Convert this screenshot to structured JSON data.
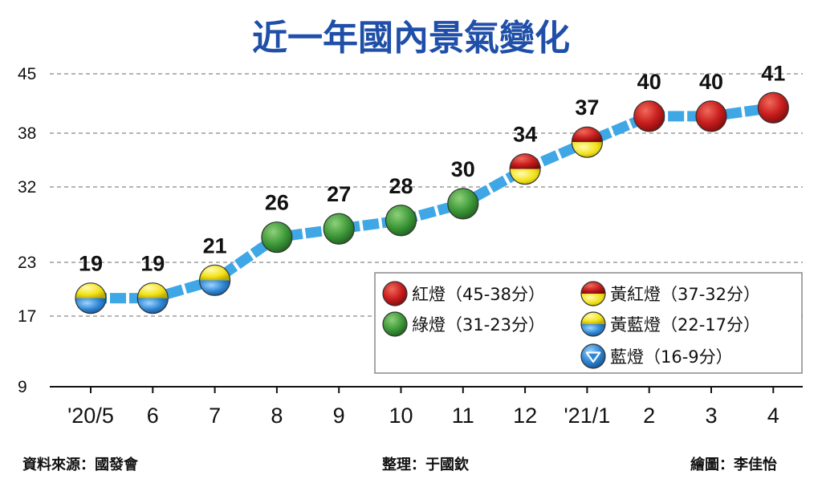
{
  "chart_data": {
    "type": "line",
    "title": "近一年國內景氣變化",
    "categories": [
      "'20/5",
      "6",
      "7",
      "8",
      "9",
      "10",
      "11",
      "12",
      "'21/1",
      "2",
      "3",
      "4"
    ],
    "values": [
      19,
      19,
      21,
      26,
      27,
      28,
      30,
      34,
      37,
      40,
      40,
      41
    ],
    "light_types": [
      "yellow-blue",
      "yellow-blue",
      "yellow-blue",
      "green",
      "green",
      "green",
      "green",
      "yellow-red",
      "yellow-red",
      "red",
      "red",
      "red"
    ],
    "y_ticks": [
      9,
      17,
      23,
      32,
      38,
      45
    ],
    "ylim": [
      9,
      45
    ],
    "grid": "horizontal-dashed",
    "line_color": "#3fa7e6",
    "legend": {
      "placement": "bottom-right",
      "items": [
        {
          "type": "red",
          "label": "紅燈（45-38分）"
        },
        {
          "type": "yellow-red",
          "label": "黃紅燈（37-32分）"
        },
        {
          "type": "green",
          "label": "綠燈（31-23分）"
        },
        {
          "type": "yellow-blue",
          "label": "黃藍燈（22-17分）"
        },
        {
          "type": "blue",
          "label": "藍燈（16-9分）"
        }
      ]
    }
  },
  "footer": {
    "source": "資料來源：國發會",
    "editor": "整理：于國欽",
    "artist": "繪圖：李佳怡"
  },
  "colors": {
    "red": "#c81e1e",
    "green": "#3f9a3a",
    "yellow": "#f2e21a",
    "blue": "#2f86d4",
    "title": "#1f4fa8"
  }
}
